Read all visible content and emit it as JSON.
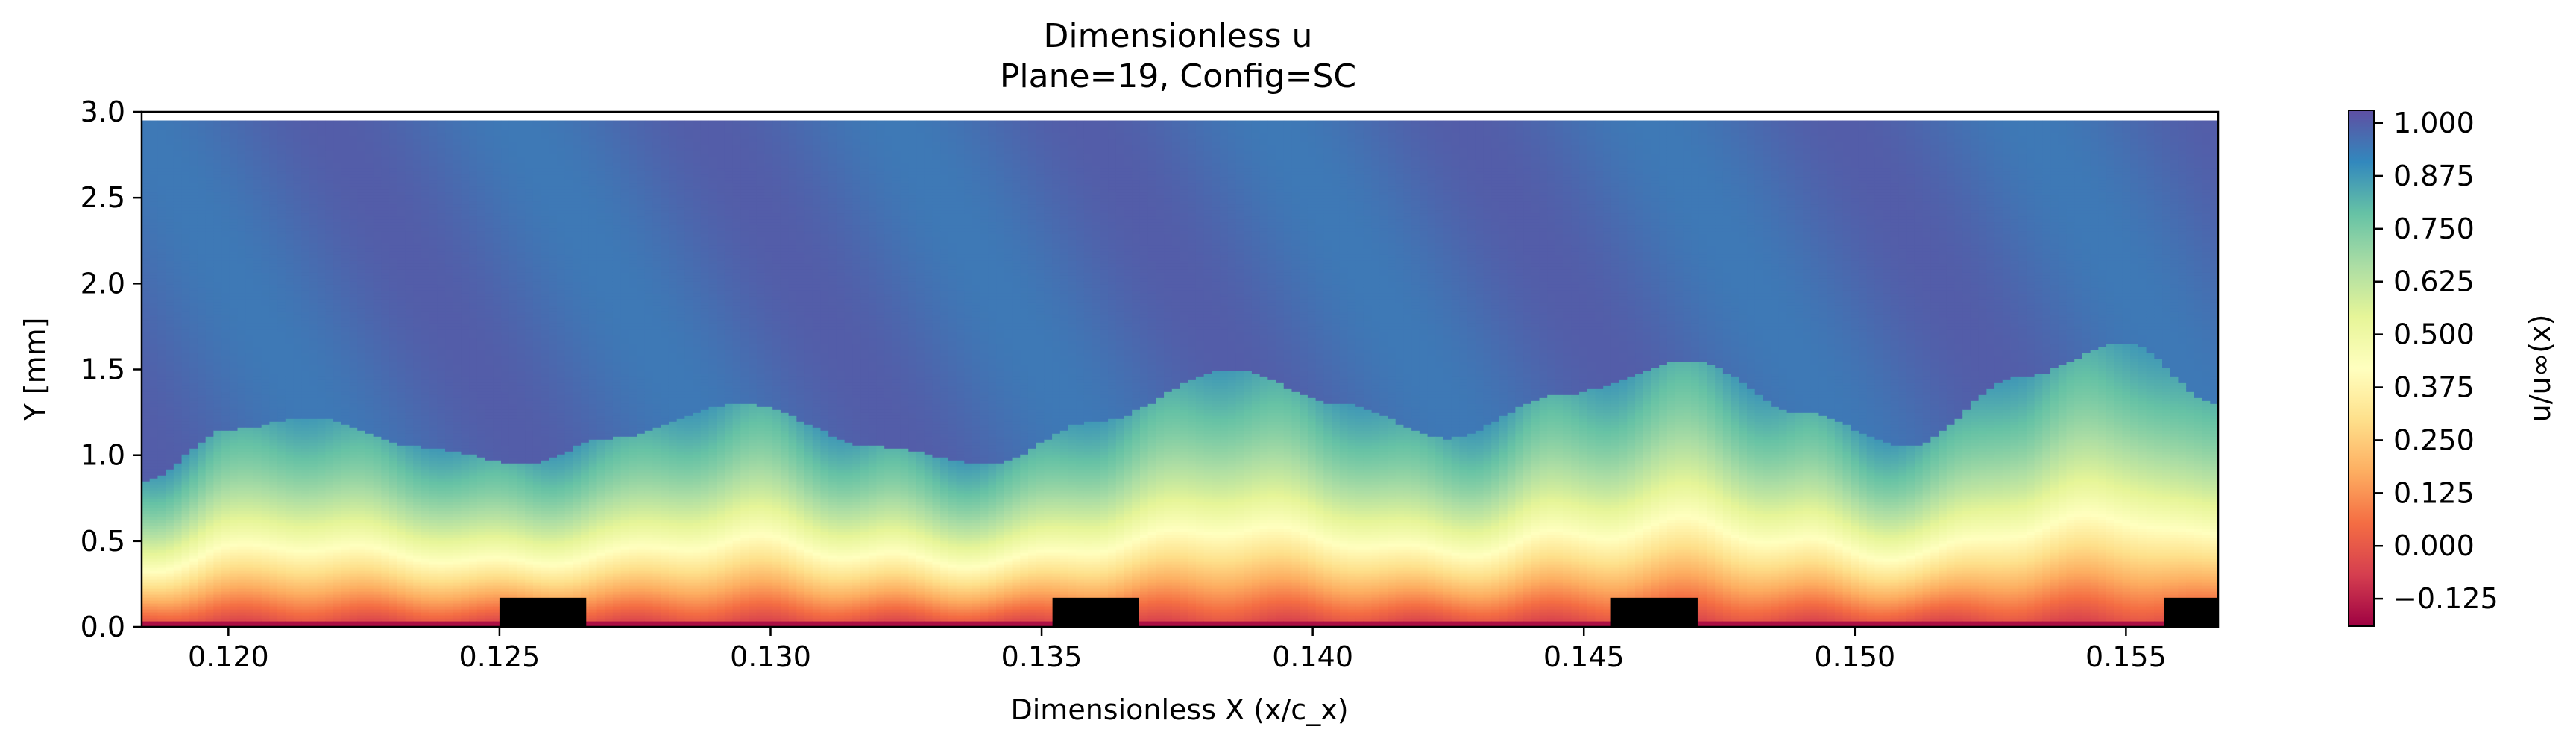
{
  "chart_data": {
    "type": "heatmap",
    "title": "Dimensionless u",
    "subtitle": "Plane=19, Config=SC",
    "xlabel": "Dimensionless X (x/c_x)",
    "ylabel": "Y [mm]",
    "xlim": [
      0.1184,
      0.1567
    ],
    "ylim": [
      0.0,
      3.0
    ],
    "xticks": [
      0.12,
      0.125,
      0.13,
      0.135,
      0.14,
      0.145,
      0.15,
      0.155
    ],
    "xtick_labels": [
      "0.120",
      "0.125",
      "0.130",
      "0.135",
      "0.140",
      "0.145",
      "0.150",
      "0.155"
    ],
    "yticks": [
      0.0,
      0.5,
      1.0,
      1.5,
      2.0,
      2.5,
      3.0
    ],
    "ytick_labels": [
      "0.0",
      "0.5",
      "1.0",
      "1.5",
      "2.0",
      "2.5",
      "3.0"
    ],
    "data_y_max": 2.95,
    "colormap": "Spectral",
    "colorbar": {
      "label": "u/u∞(x)",
      "range": [
        -0.19,
        1.03
      ],
      "ticks": [
        1.0,
        0.875,
        0.75,
        0.625,
        0.5,
        0.375,
        0.25,
        0.125,
        0.0,
        -0.125
      ],
      "tick_labels": [
        "1.000",
        "0.875",
        "0.750",
        "0.625",
        "0.500",
        "0.375",
        "0.250",
        "0.125",
        "0.000",
        "−0.125"
      ]
    },
    "boundary_layer_edge": {
      "description": "approximate height where u/u∞ reaches ~0.99",
      "x": [
        0.1184,
        0.12,
        0.1215,
        0.1235,
        0.1255,
        0.127,
        0.1295,
        0.132,
        0.134,
        0.136,
        0.1385,
        0.1405,
        0.1425,
        0.1445,
        0.147,
        0.149,
        0.151,
        0.153,
        0.155,
        0.1567
      ],
      "y": [
        0.85,
        1.15,
        1.22,
        1.05,
        0.95,
        1.1,
        1.3,
        1.05,
        0.95,
        1.2,
        1.5,
        1.3,
        1.1,
        1.35,
        1.55,
        1.25,
        1.05,
        1.45,
        1.65,
        1.3
      ]
    },
    "blocks": [
      {
        "x0": 0.125,
        "x1": 0.1266,
        "y0": 0.0,
        "y1": 0.17
      },
      {
        "x0": 0.1352,
        "x1": 0.1368,
        "y0": 0.0,
        "y1": 0.17
      },
      {
        "x0": 0.1455,
        "x1": 0.1471,
        "y0": 0.0,
        "y1": 0.17
      },
      {
        "x0": 0.1557,
        "x1": 0.1567,
        "y0": 0.0,
        "y1": 0.17
      }
    ]
  }
}
